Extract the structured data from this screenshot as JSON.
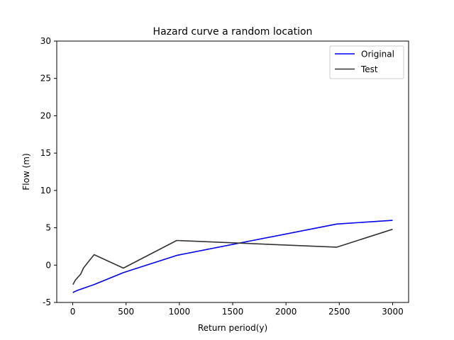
{
  "chart_data": {
    "type": "line",
    "title": "Hazard curve a random location",
    "xlabel": "Return period(y)",
    "ylabel": "Flow (m)",
    "xlim": [
      -150,
      3150
    ],
    "ylim": [
      -5,
      30
    ],
    "x_ticks": [
      0,
      500,
      1000,
      1500,
      2000,
      2500,
      3000
    ],
    "y_ticks": [
      -5,
      0,
      5,
      10,
      15,
      20,
      25,
      30
    ],
    "grid": false,
    "legend_position": "top-right",
    "series": [
      {
        "name": "Original",
        "color": "#0000ee",
        "x": [
          2,
          10,
          25,
          50,
          100,
          200,
          475,
          975,
          2475,
          3000
        ],
        "y": [
          -3.7,
          -3.6,
          -3.5,
          -3.35,
          -3.1,
          -2.6,
          -1.0,
          1.3,
          5.5,
          6.0
        ]
      },
      {
        "name": "Test",
        "color": "#333333",
        "x": [
          2,
          25,
          50,
          75,
          100,
          200,
          475,
          975,
          2475,
          3000
        ],
        "y": [
          -2.6,
          -2.0,
          -1.6,
          -1.2,
          -0.4,
          1.4,
          -0.4,
          3.3,
          2.4,
          4.8
        ]
      }
    ]
  }
}
